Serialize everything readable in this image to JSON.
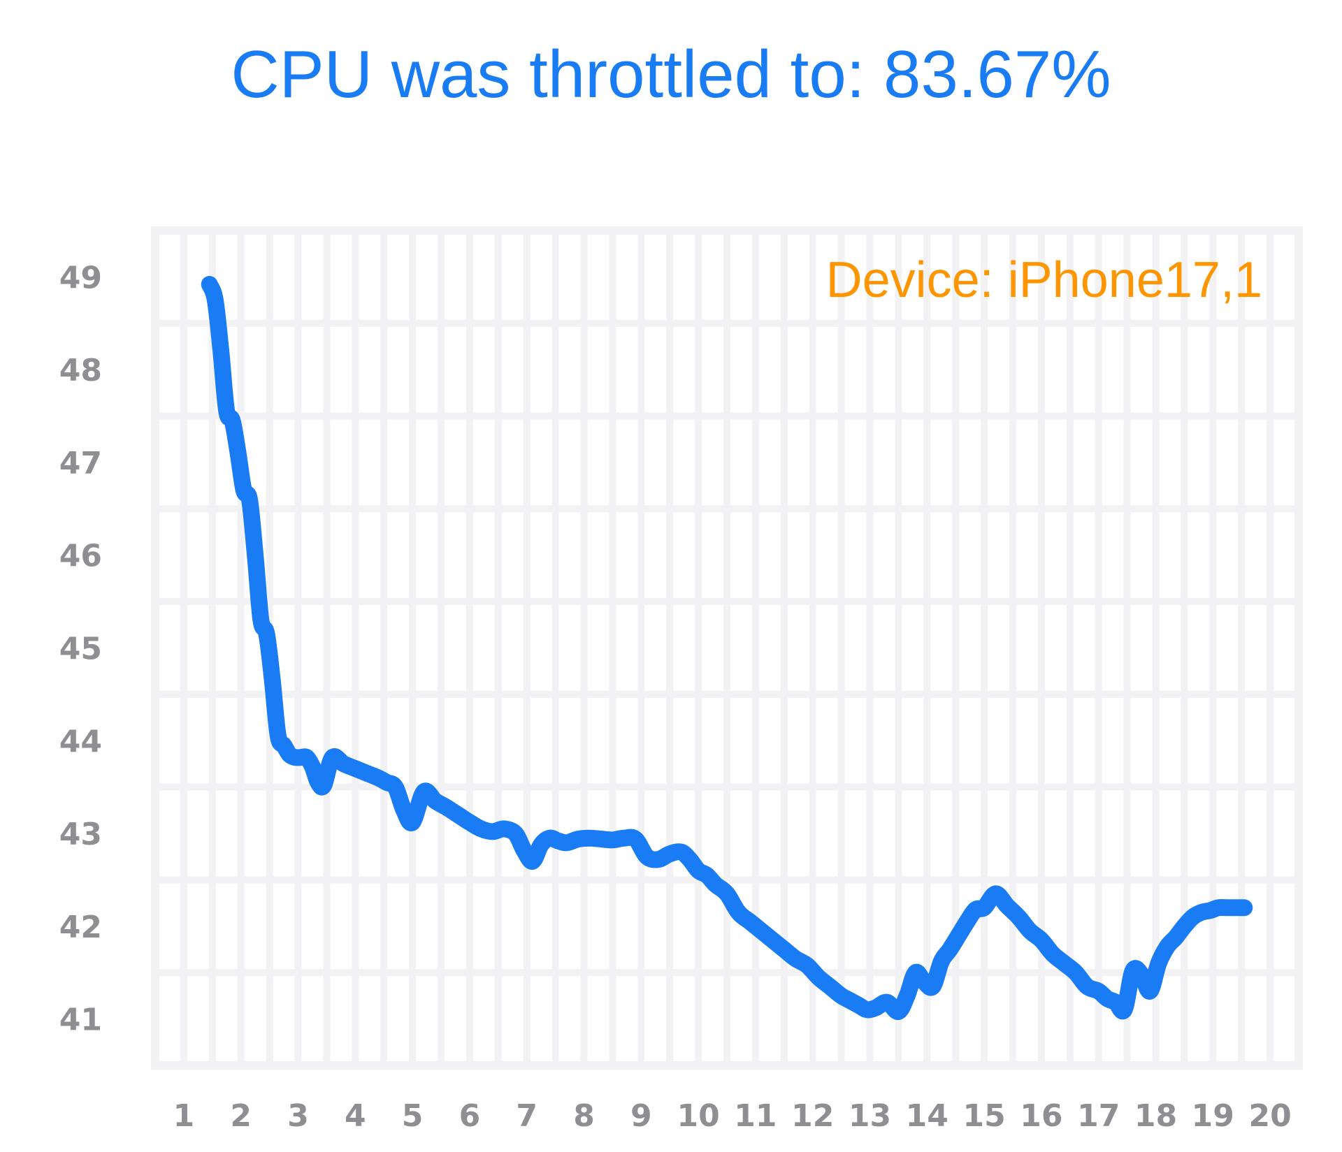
{
  "header": {
    "title": "CPU was throttled to: 83.67%"
  },
  "chart_data": {
    "type": "line",
    "title": "CPU was throttled to: 83.67%",
    "annotation": "Device: iPhone17,1",
    "xlabel": "",
    "ylabel": "",
    "xlim": [
      0.5,
      20.5
    ],
    "ylim": [
      40.5,
      49.5
    ],
    "x_ticks": [
      "1",
      "2",
      "3",
      "4",
      "5",
      "6",
      "7",
      "8",
      "9",
      "10",
      "11",
      "12",
      "13",
      "14",
      "15",
      "16",
      "17",
      "18",
      "19",
      "20"
    ],
    "y_ticks": [
      "41",
      "42",
      "43",
      "44",
      "45",
      "46",
      "47",
      "48",
      "49"
    ],
    "grid": true,
    "line_color": "#1a7cf5",
    "annotation_color": "#ff9500",
    "series": [
      {
        "x": [
          1.45,
          1.55,
          1.65,
          1.75,
          1.85,
          1.95,
          2.05,
          2.15,
          2.25,
          2.35,
          2.45,
          2.55,
          2.65,
          2.75,
          2.85,
          2.95,
          3.05,
          3.15,
          3.25,
          3.35,
          3.45,
          3.6,
          3.8,
          4.0,
          4.2,
          4.4,
          4.55,
          4.7,
          4.85,
          5.0,
          5.2,
          5.4,
          5.6,
          5.8,
          6.0,
          6.2,
          6.4,
          6.6,
          6.8,
          6.95,
          7.1,
          7.25,
          7.4,
          7.55,
          7.7,
          7.9,
          8.1,
          8.3,
          8.5,
          8.7,
          8.9,
          9.1,
          9.3,
          9.5,
          9.7,
          9.85,
          10.0,
          10.15,
          10.3,
          10.5,
          10.7,
          10.9,
          11.1,
          11.3,
          11.5,
          11.7,
          11.9,
          12.1,
          12.3,
          12.5,
          12.65,
          12.8,
          12.95,
          13.1,
          13.3,
          13.5,
          13.65,
          13.8,
          13.95,
          14.1,
          14.25,
          14.4,
          14.55,
          14.7,
          14.85,
          15.0,
          15.2,
          15.4,
          15.6,
          15.8,
          16.0,
          16.2,
          16.4,
          16.6,
          16.8,
          17.0,
          17.15,
          17.3,
          17.45,
          17.6,
          17.75,
          17.9,
          18.05,
          18.2,
          18.35,
          18.5,
          18.65,
          18.8,
          18.95,
          19.1,
          19.25,
          19.4,
          19.55
        ],
        "y": [
          48.92,
          48.75,
          48.2,
          47.55,
          47.45,
          47.1,
          46.7,
          46.6,
          46.0,
          45.3,
          45.15,
          44.65,
          44.05,
          43.95,
          43.85,
          43.82,
          43.82,
          43.82,
          43.72,
          43.55,
          43.52,
          43.82,
          43.75,
          43.7,
          43.65,
          43.6,
          43.55,
          43.5,
          43.25,
          43.12,
          43.45,
          43.35,
          43.28,
          43.2,
          43.12,
          43.05,
          43.02,
          43.05,
          43.0,
          42.82,
          42.7,
          42.88,
          42.95,
          42.92,
          42.9,
          42.94,
          42.95,
          42.94,
          42.93,
          42.95,
          42.94,
          42.75,
          42.72,
          42.78,
          42.8,
          42.72,
          42.6,
          42.55,
          42.45,
          42.35,
          42.15,
          42.05,
          41.95,
          41.85,
          41.75,
          41.65,
          41.58,
          41.45,
          41.35,
          41.25,
          41.2,
          41.15,
          41.1,
          41.12,
          41.18,
          41.08,
          41.25,
          41.5,
          41.4,
          41.35,
          41.62,
          41.75,
          41.9,
          42.05,
          42.18,
          42.2,
          42.35,
          42.22,
          42.1,
          41.95,
          41.85,
          41.7,
          41.6,
          41.5,
          41.35,
          41.3,
          41.22,
          41.18,
          41.1,
          41.52,
          41.48,
          41.3,
          41.6,
          41.78,
          41.88,
          42.0,
          42.1,
          42.15,
          42.17,
          42.2,
          42.2,
          42.2,
          42.2
        ]
      }
    ]
  }
}
